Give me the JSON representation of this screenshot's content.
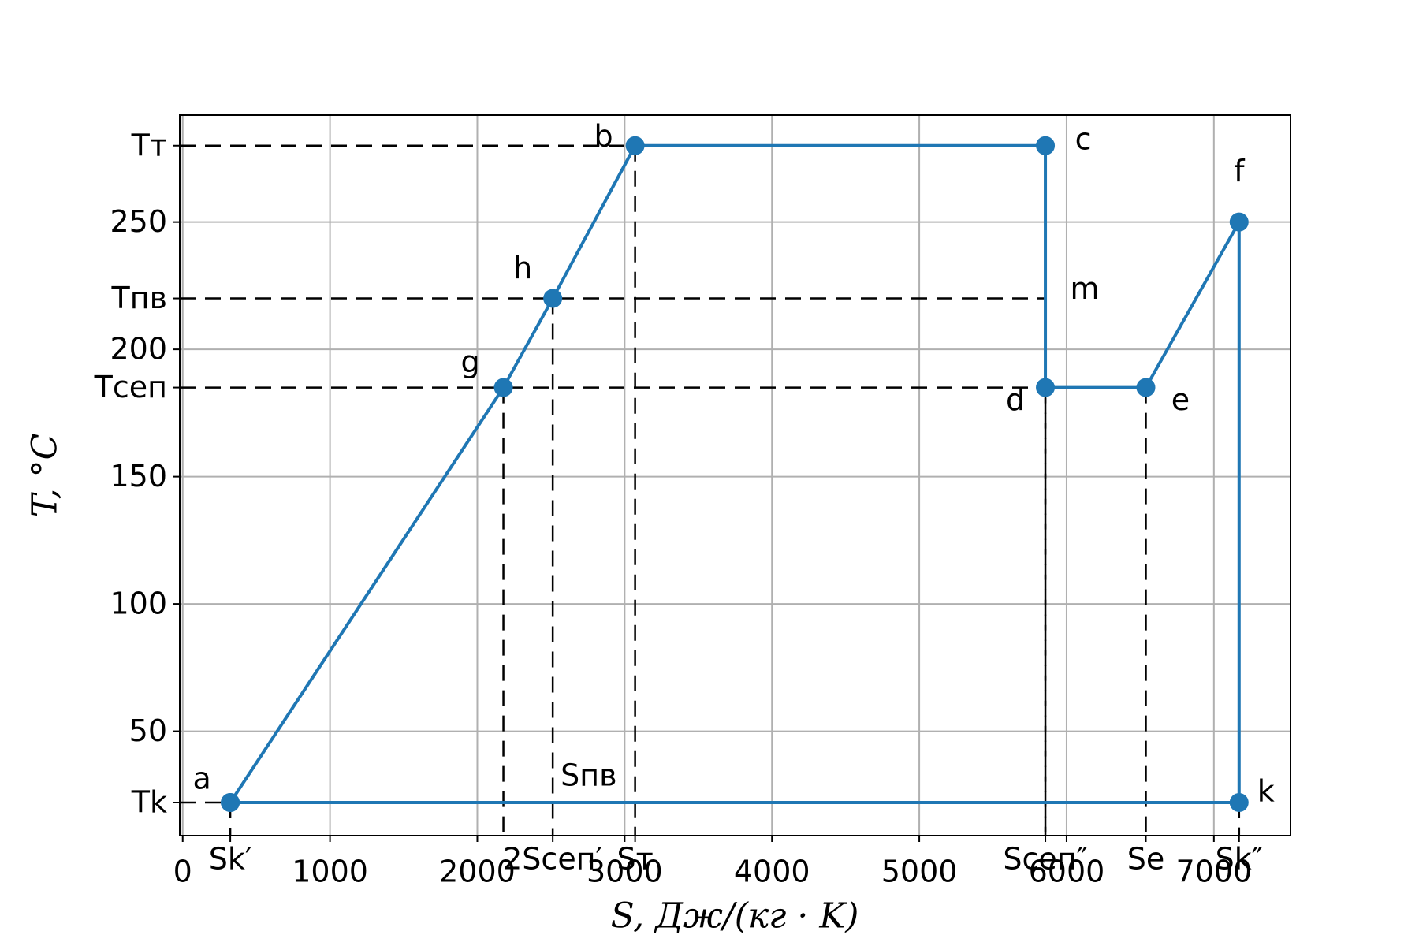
{
  "chart_data": {
    "type": "line",
    "x_label": "S, Дж/(кг · K)",
    "y_label": "T, °C",
    "series": [
      {
        "color": "#1f77b4",
        "x": [
          323,
          2177,
          2512,
          3071,
          5856,
          5856,
          6538,
          7171,
          7171,
          323
        ],
        "values": [
          22,
          185,
          220,
          280,
          280,
          185,
          185,
          250,
          22,
          22
        ],
        "point_labels": [
          "a",
          "g",
          "h",
          "b",
          "c",
          "d",
          "e",
          "f",
          "k",
          null
        ]
      }
    ],
    "xlim": [
      -20,
      7520
    ],
    "ylim": [
      9,
      292
    ],
    "xticks": [
      0,
      1000,
      2000,
      3000,
      4000,
      5000,
      6000,
      7000,
      {
        "value": 323,
        "label": "Sk′"
      },
      {
        "value": 2512,
        "label": "2Sсеп′"
      },
      {
        "value": 3071,
        "label": "Sт"
      },
      {
        "value": 5856,
        "label": "Sсеп″"
      },
      {
        "value": 6538,
        "label": "Se"
      },
      {
        "value": 7171,
        "label": "Sk″"
      }
    ],
    "yticks": [
      50,
      100,
      150,
      200,
      250,
      {
        "value": 22,
        "label": "Tk"
      },
      {
        "value": 185,
        "label": "Tсеп"
      },
      {
        "value": 220,
        "label": "Tпв"
      },
      {
        "value": 280,
        "label": "Tт"
      }
    ],
    "annotations": [
      "m",
      "Sпв"
    ],
    "grid": true
  }
}
